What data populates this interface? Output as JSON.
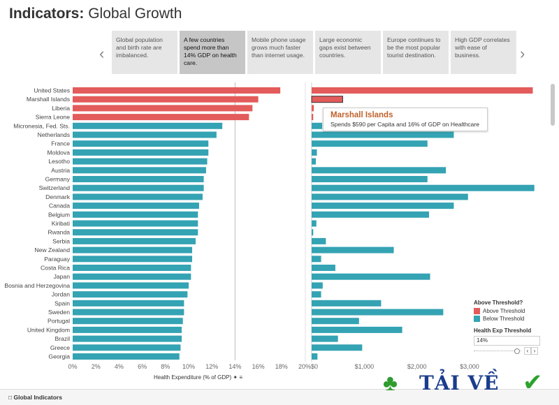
{
  "header": {
    "title_bold": "Indicators:",
    "title_rest": " Global Growth"
  },
  "story": {
    "prev_icon": "chevron-left-icon",
    "next_icon": "chevron-right-icon",
    "cards": [
      {
        "text": "Global population and birth rate are imbalanced.",
        "active": false
      },
      {
        "text": "A few countries spend more than 14% GDP on health care.",
        "active": true
      },
      {
        "text": "Mobile phone usage grows much faster than internet usage.",
        "active": false
      },
      {
        "text": "Large economic gaps exist between countries.",
        "active": false
      },
      {
        "text": "Europe continues to be the most popular tourist destination.",
        "active": false
      },
      {
        "text": "High GDP correlates with ease of business.",
        "active": false
      }
    ]
  },
  "tooltip": {
    "title": "Marshall Islands",
    "body": "Spends $590 per Capita and 16% of GDP on Healthcare"
  },
  "legend": {
    "title": "Above Threshold?",
    "items": [
      {
        "label": "Above Threshold",
        "color": "#e35b5b"
      },
      {
        "label": "Below Threshold",
        "color": "#34a3b3"
      }
    ],
    "threshold_label": "Health Exp Threshold",
    "threshold_value": "14%"
  },
  "footer": {
    "tab_label": "Global Indicators"
  },
  "axis": {
    "left_title": "Health Expenditure (% of GDP)"
  },
  "watermark": {
    "text": "TẢI VỀ"
  },
  "colors": {
    "above": "#e35b5b",
    "below": "#34a3b3"
  },
  "chart_data": [
    {
      "type": "bar",
      "orientation": "horizontal",
      "xlabel": "Health Expenditure (% of GDP)",
      "xlim": [
        0,
        20
      ],
      "x_ticks": [
        "0%",
        "2%",
        "4%",
        "6%",
        "8%",
        "10%",
        "12%",
        "14%",
        "16%",
        "18%",
        "20%"
      ],
      "threshold": 14,
      "categories": [
        "United States",
        "Marshall Islands",
        "Liberia",
        "Sierra Leone",
        "Micronesia, Fed. Sts.",
        "Netherlands",
        "France",
        "Moldova",
        "Lesotho",
        "Austria",
        "Germany",
        "Switzerland",
        "Denmark",
        "Canada",
        "Belgium",
        "Kiribati",
        "Rwanda",
        "Serbia",
        "New Zealand",
        "Paraguay",
        "Costa Rica",
        "Japan",
        "Bosnia and Herzegovina",
        "Jordan",
        "Spain",
        "Sweden",
        "Portugal",
        "United Kingdom",
        "Brazil",
        "Greece",
        "Georgia"
      ],
      "values": [
        17.9,
        16.0,
        15.5,
        15.2,
        12.9,
        12.4,
        11.7,
        11.7,
        11.6,
        11.5,
        11.3,
        11.3,
        11.2,
        10.9,
        10.8,
        10.8,
        10.8,
        10.6,
        10.3,
        10.3,
        10.2,
        10.2,
        10.0,
        9.9,
        9.6,
        9.6,
        9.5,
        9.4,
        9.4,
        9.3,
        9.2
      ],
      "above_threshold": [
        true,
        true,
        true,
        true,
        false,
        false,
        false,
        false,
        false,
        false,
        false,
        false,
        false,
        false,
        false,
        false,
        false,
        false,
        false,
        false,
        false,
        false,
        false,
        false,
        false,
        false,
        false,
        false,
        false,
        false,
        false
      ]
    },
    {
      "type": "bar",
      "orientation": "horizontal",
      "xlabel": "",
      "xlim": [
        0,
        4300
      ],
      "x_ticks": [
        "$0",
        "$1,000",
        "$2,000",
        "$3,000"
      ],
      "categories": [
        "United States",
        "Marshall Islands",
        "Liberia",
        "Sierra Leone",
        "Micronesia, Fed. Sts.",
        "Netherlands",
        "France",
        "Moldova",
        "Lesotho",
        "Austria",
        "Germany",
        "Switzerland",
        "Denmark",
        "Canada",
        "Belgium",
        "Kiribati",
        "Rwanda",
        "Serbia",
        "New Zealand",
        "Paraguay",
        "Costa Rica",
        "Japan",
        "Bosnia and Herzegovina",
        "Jordan",
        "Spain",
        "Sweden",
        "Portugal",
        "United Kingdom",
        "Brazil",
        "Greece",
        "Georgia"
      ],
      "values": [
        4200,
        590,
        40,
        30,
        200,
        2700,
        2200,
        100,
        80,
        2550,
        2200,
        4230,
        2970,
        2700,
        2230,
        90,
        30,
        270,
        1560,
        180,
        450,
        2250,
        210,
        180,
        1320,
        2500,
        900,
        1720,
        500,
        960,
        110
      ],
      "above_threshold": [
        true,
        true,
        true,
        true,
        false,
        false,
        false,
        false,
        false,
        false,
        false,
        false,
        false,
        false,
        false,
        false,
        false,
        false,
        false,
        false,
        false,
        false,
        false,
        false,
        false,
        false,
        false,
        false,
        false,
        false,
        false
      ]
    }
  ]
}
